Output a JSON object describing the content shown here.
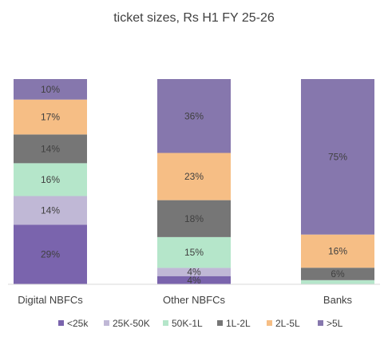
{
  "chart_data": {
    "type": "bar",
    "stacked": true,
    "percent_stacked": true,
    "title": "ticket sizes, Rs H1 FY 25-26",
    "categories": [
      "Digital NBFCs",
      "Other NBFCs",
      "Banks"
    ],
    "series": [
      {
        "name": "<25k",
        "color": "#7a64ad",
        "values": [
          29,
          4,
          0
        ]
      },
      {
        "name": "25K-50K",
        "color": "#c0b8d6",
        "values": [
          14,
          4,
          0
        ]
      },
      {
        "name": "50K-1L",
        "color": "#b5e6ca",
        "values": [
          16,
          15,
          2
        ]
      },
      {
        "name": "1L-2L",
        "color": "#767676",
        "values": [
          14,
          18,
          6
        ]
      },
      {
        "name": "2L-5L",
        "color": "#f6be85",
        "values": [
          17,
          23,
          16
        ]
      },
      {
        "name": ">5L",
        "color": "#8677ad",
        "values": [
          10,
          36,
          75
        ]
      }
    ],
    "data_labels": [
      [
        "29%",
        "14%",
        "16%",
        "14%",
        "17%",
        "10%"
      ],
      [
        "4%",
        "4%",
        "15%",
        "18%",
        "23%",
        "36%"
      ],
      [
        "",
        "",
        "",
        "6%",
        "16%",
        "75%"
      ]
    ],
    "legend_position": "bottom",
    "grid": false
  }
}
